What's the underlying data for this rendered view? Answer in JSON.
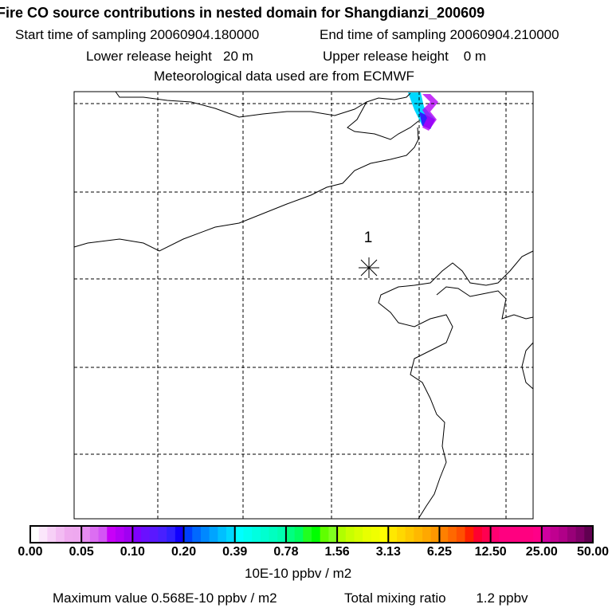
{
  "header": {
    "title": "Fire CO source contributions in nested domain for Shangdianzi_200609",
    "start_label": "Start time of sampling 20060904.180000",
    "end_label": "End time of sampling 20060904.210000",
    "lower_label": "Lower release height   20 m",
    "upper_label": "Upper release height    0 m",
    "met_label": "Meteorological data used are from ECMWF"
  },
  "map": {
    "receptor_label": "1",
    "receptor_icon": "asterisk-icon"
  },
  "colorbar": {
    "tick_labels": [
      "0.00",
      "0.05",
      "0.10",
      "0.20",
      "0.39",
      "0.78",
      "1.56",
      "3.13",
      "6.25",
      "12.50",
      "25.00",
      "50.00"
    ],
    "segments": [
      [
        "#ffffff",
        "#fbe6fb",
        "#f7d0f7",
        "#f3bcf3",
        "#efaaef",
        "#eea8ef"
      ],
      [
        "#e58cf0",
        "#dc6ef2",
        "#d455f5",
        "#c800f8",
        "#b400f6",
        "#a000f2"
      ],
      [
        "#7f00ff",
        "#6a10ff",
        "#5a18ff",
        "#4820ff",
        "#3020ff",
        "#1000ff"
      ],
      [
        "#0040ff",
        "#0068ff",
        "#0088ff",
        "#00a4ff",
        "#00c0ff",
        "#00d8ff"
      ],
      [
        "#00ffff",
        "#00fff0",
        "#00ffe0",
        "#00ffd0",
        "#00ffc0",
        "#00ffb0"
      ],
      [
        "#00ff80",
        "#00ff60",
        "#20ff20",
        "#00ff00",
        "#60ff00",
        "#80ff20"
      ],
      [
        "#b0ff00",
        "#c8ff00",
        "#d8ff00",
        "#e8ff00",
        "#f0ff00",
        "#ffff00"
      ],
      [
        "#ffe800",
        "#ffd800",
        "#ffc800",
        "#ffb800",
        "#ffa800",
        "#ff9800"
      ],
      [
        "#ff8000",
        "#ff6800",
        "#ff5000",
        "#ff2000",
        "#ff0030",
        "#ff0050"
      ],
      [
        "#ff0070",
        "#ff0080",
        "#ff0080",
        "#ff0080",
        "#ff0080",
        "#ff0088"
      ],
      [
        "#d000a0",
        "#c00090",
        "#b00088",
        "#980078",
        "#800068",
        "#600050"
      ]
    ],
    "unit_label": "10E-10 ppbv / m2"
  },
  "footer": {
    "max_label": "Maximum value  0.568E-10 ppbv / m2",
    "total_label": "Total mixing ratio        1.2 ppbv"
  }
}
